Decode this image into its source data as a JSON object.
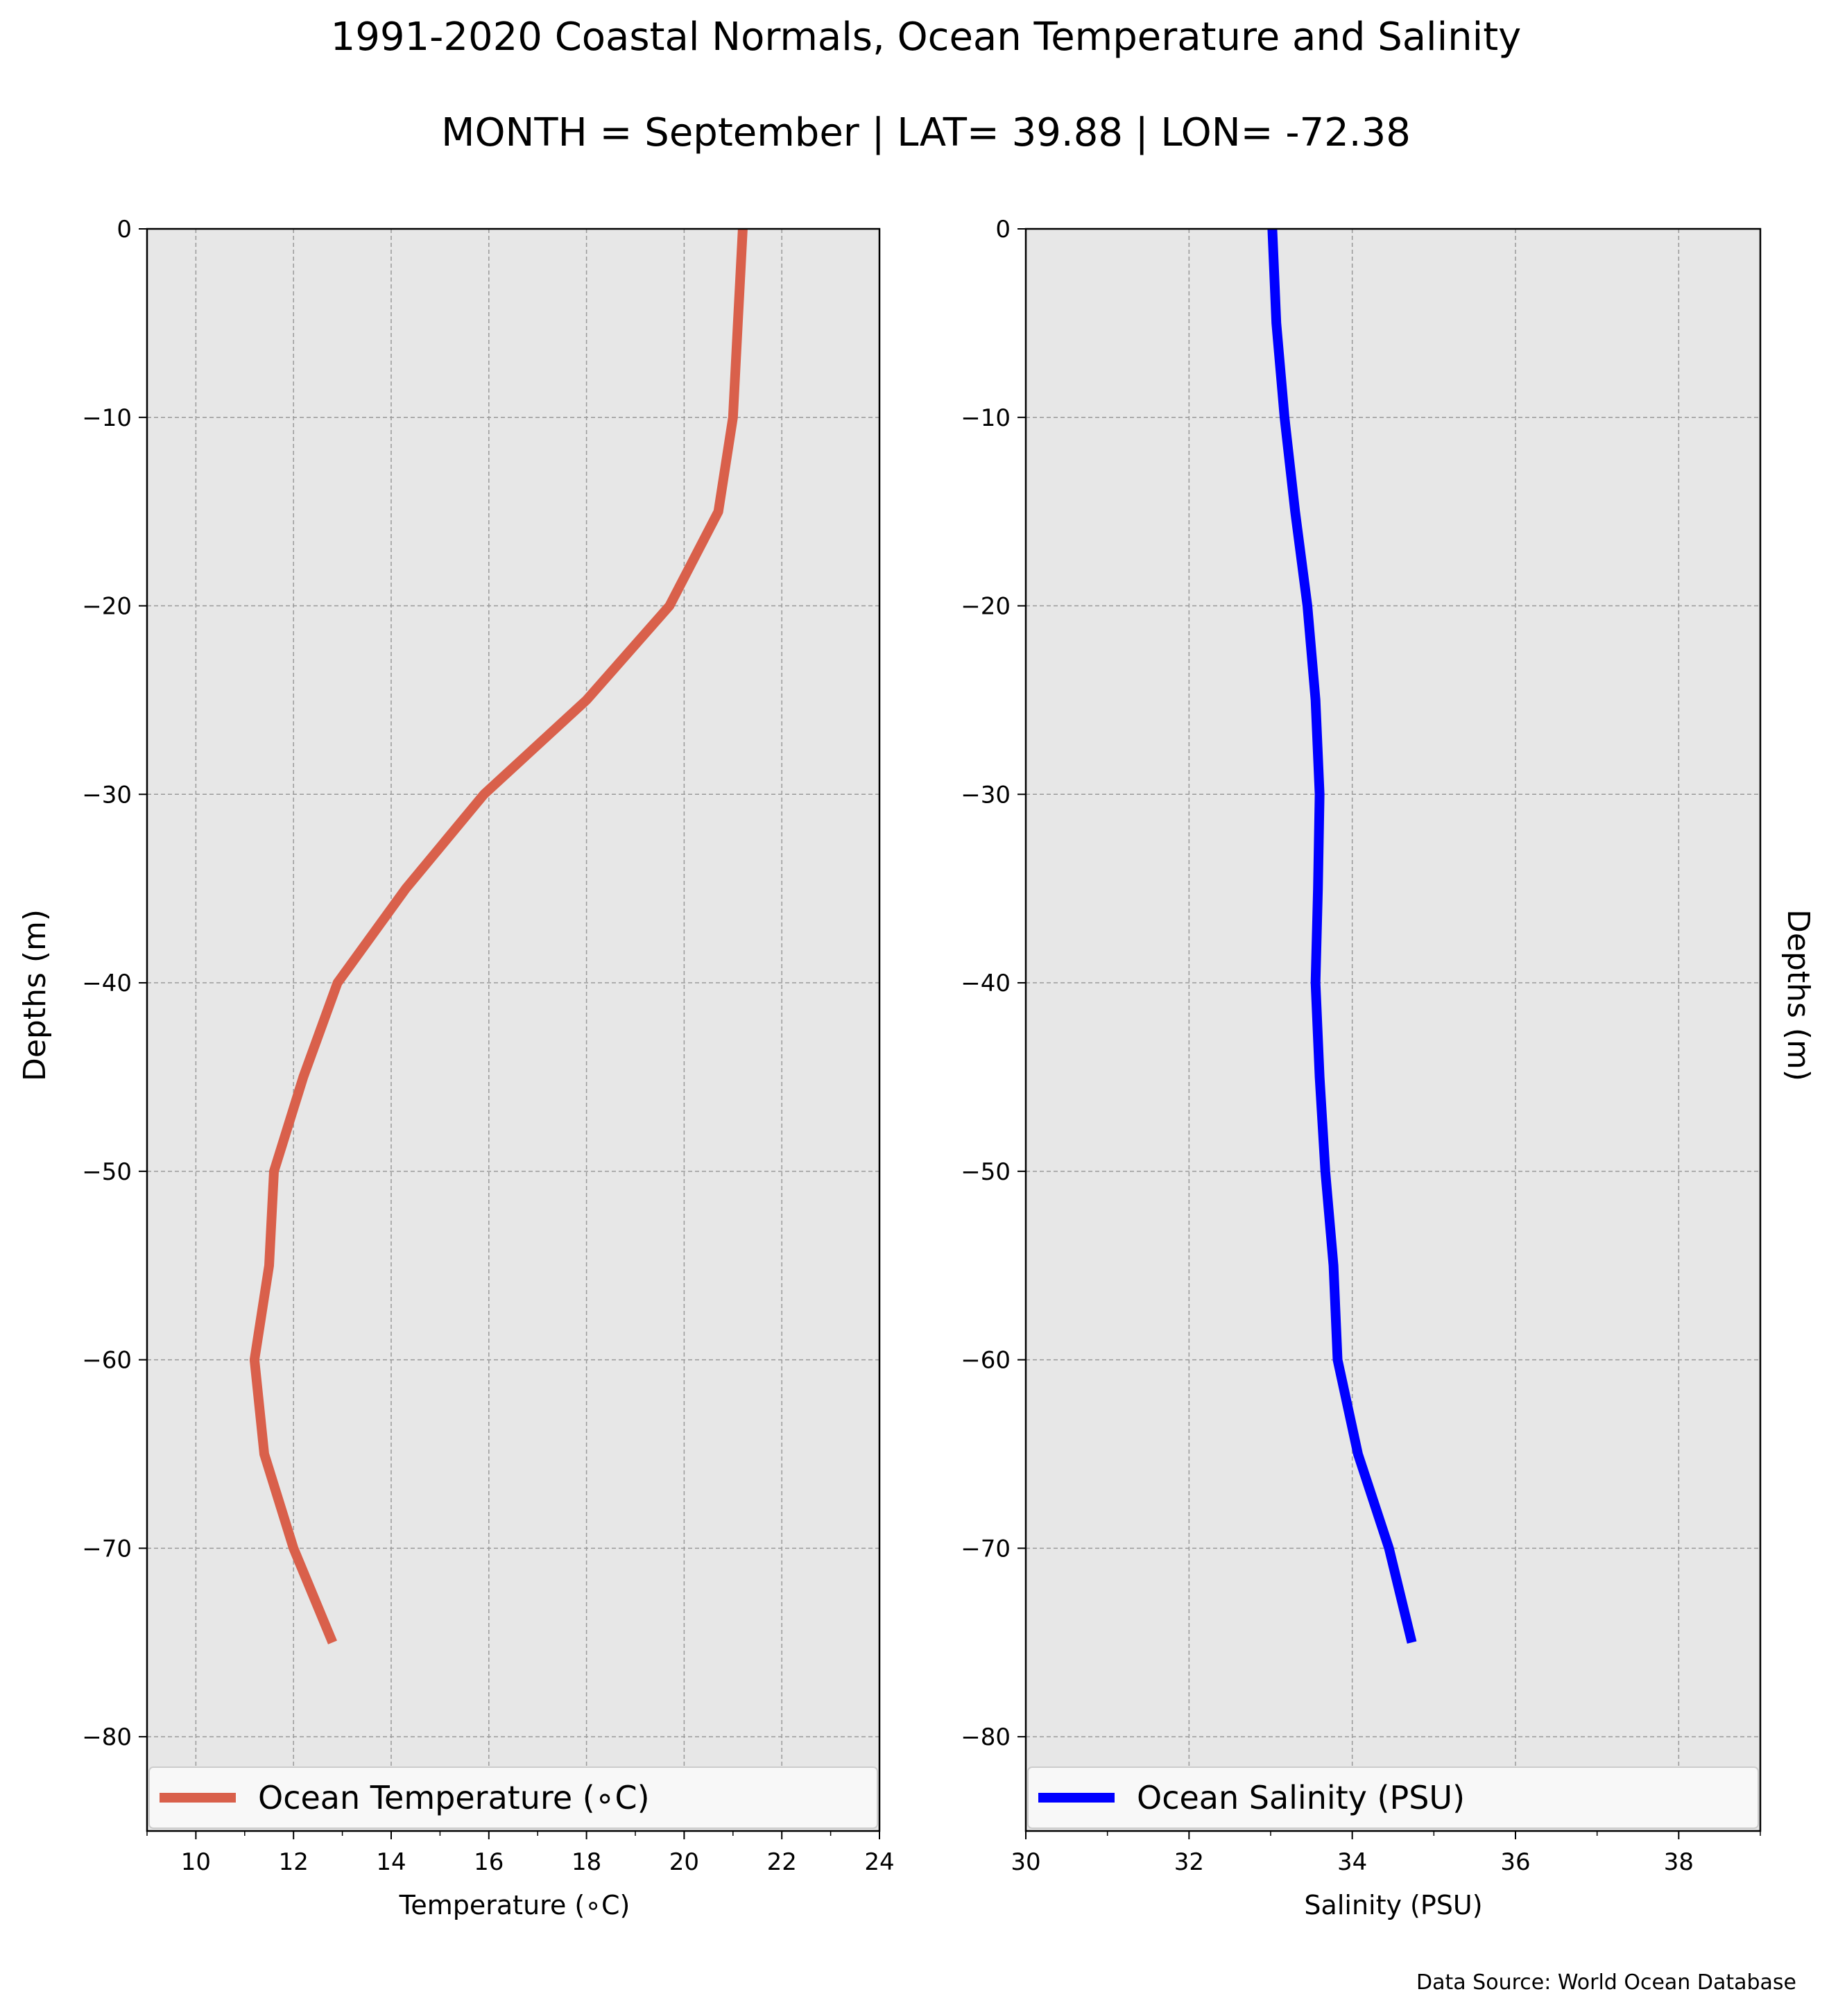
{
  "figure": {
    "title_line1": "1991-2020 Coastal Normals, Ocean Temperature and Salinity",
    "title_line2": "MONTH = September | LAT= 39.88 | LON= -72.38",
    "source": "Data Source: World Ocean Database"
  },
  "colors": {
    "panel_background": "#e7e7e7",
    "grid": "#9a9a9a",
    "temperature_line": "#d9604b",
    "salinity_line": "#0000ff",
    "legend_background": "#f8f8f8"
  },
  "chart_data": [
    {
      "type": "line",
      "orientation": "profile (x = value, y = depth)",
      "xlabel": "Temperature ($^\\circ$C)",
      "xlabel_display": "Temperature (∘C)",
      "ylabel": "Depths (m)",
      "xlim": [
        9,
        24
      ],
      "ylim": [
        -85,
        0
      ],
      "xticks": [
        10,
        12,
        14,
        16,
        18,
        20,
        22,
        24
      ],
      "x_minor_ticks": [
        9,
        11,
        13,
        15,
        17,
        19,
        21,
        23
      ],
      "yticks": [
        0,
        -10,
        -20,
        -30,
        -40,
        -50,
        -60,
        -70,
        -80
      ],
      "xtick_labels": [
        "10",
        "12",
        "14",
        "16",
        "18",
        "20",
        "22",
        "24"
      ],
      "ytick_labels": [
        "0",
        "−10",
        "−20",
        "−30",
        "−40",
        "−50",
        "−60",
        "−70",
        "−80"
      ],
      "grid": true,
      "legend_position": "bottom (full width)",
      "series": [
        {
          "name": "Ocean Temperature (∘C)",
          "color": "#d9604b",
          "x": [
            21.2,
            21.1,
            21.0,
            20.7,
            19.7,
            18.0,
            15.9,
            14.3,
            12.9,
            12.2,
            11.6,
            11.5,
            11.2,
            11.4,
            12.0,
            12.8
          ],
          "y": [
            0,
            -5,
            -10,
            -15,
            -20,
            -25,
            -30,
            -35,
            -40,
            -45,
            -50,
            -55,
            -60,
            -65,
            -70,
            -75
          ]
        }
      ]
    },
    {
      "type": "line",
      "orientation": "profile (x = value, y = depth)",
      "xlabel": "Salinity (PSU)",
      "ylabel": "Depths (m)",
      "ylabel_side": "right",
      "xlim": [
        30,
        39
      ],
      "ylim": [
        -85,
        0
      ],
      "xticks": [
        30,
        32,
        34,
        36,
        38
      ],
      "x_minor_ticks": [
        31,
        33,
        35,
        37,
        39
      ],
      "yticks": [
        0,
        -10,
        -20,
        -30,
        -40,
        -50,
        -60,
        -70,
        -80
      ],
      "xtick_labels": [
        "30",
        "32",
        "34",
        "36",
        "38"
      ],
      "ytick_labels": [
        "0",
        "−10",
        "−20",
        "−30",
        "−40",
        "−50",
        "−60",
        "−70",
        "−80"
      ],
      "grid": true,
      "legend_position": "bottom (full width)",
      "series": [
        {
          "name": "Ocean Salinity (PSU)",
          "color": "#0000ff",
          "x": [
            33.02,
            33.07,
            33.17,
            33.3,
            33.45,
            33.55,
            33.6,
            33.58,
            33.55,
            33.6,
            33.67,
            33.77,
            33.82,
            34.07,
            34.45,
            34.73
          ],
          "y": [
            0,
            -5,
            -10,
            -15,
            -20,
            -25,
            -30,
            -35,
            -40,
            -45,
            -50,
            -55,
            -60,
            -65,
            -70,
            -75
          ]
        }
      ]
    }
  ]
}
